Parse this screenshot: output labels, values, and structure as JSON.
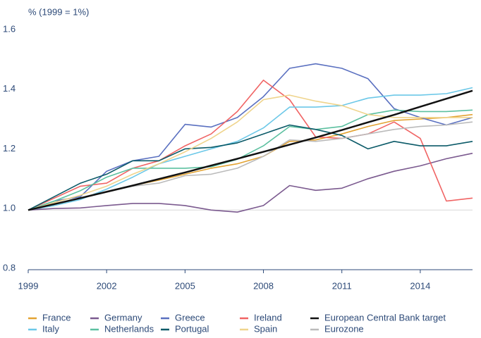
{
  "chart_data": {
    "type": "line",
    "y_label": "% (1999 = 1%)",
    "x": [
      1999,
      2000,
      2001,
      2002,
      2003,
      2004,
      2005,
      2006,
      2007,
      2008,
      2009,
      2010,
      2011,
      2012,
      2013,
      2014,
      2015,
      2016
    ],
    "xlim": [
      1999,
      2016
    ],
    "xticks": [
      1999,
      2002,
      2005,
      2008,
      2011,
      2014
    ],
    "ylim": [
      0.8,
      1.6
    ],
    "yticks": [
      0.8,
      {
        "value": 1,
        "label": "1.0"
      },
      1.2,
      1.4,
      1.6
    ],
    "series": [
      {
        "name": "France",
        "color": "#e3a332",
        "values": [
          1.0,
          1.018,
          1.04,
          1.06,
          1.082,
          1.1,
          1.12,
          1.14,
          1.155,
          1.18,
          1.23,
          1.235,
          1.255,
          1.28,
          1.3,
          1.305,
          1.31,
          1.32
        ]
      },
      {
        "name": "Germany",
        "color": "#7b5a8f",
        "values": [
          1.0,
          1.005,
          1.007,
          1.015,
          1.022,
          1.022,
          1.015,
          1.0,
          0.993,
          1.015,
          1.082,
          1.066,
          1.073,
          1.105,
          1.13,
          1.148,
          1.172,
          1.19
        ]
      },
      {
        "name": "Greece",
        "color": "#5a70c0",
        "values": [
          1.0,
          1.03,
          1.045,
          1.13,
          1.165,
          1.18,
          1.287,
          1.278,
          1.31,
          1.38,
          1.475,
          1.49,
          1.475,
          1.44,
          1.34,
          1.31,
          1.285,
          1.31
        ]
      },
      {
        "name": "Ireland",
        "color": "#f06464",
        "values": [
          1.0,
          1.04,
          1.08,
          1.09,
          1.14,
          1.165,
          1.215,
          1.255,
          1.33,
          1.435,
          1.37,
          1.245,
          1.24,
          1.255,
          1.295,
          1.24,
          1.03,
          1.04
        ]
      },
      {
        "name": "European Central Bank target",
        "color": "#111111",
        "values": [
          1.0,
          1.02,
          1.04,
          1.061,
          1.082,
          1.104,
          1.126,
          1.149,
          1.172,
          1.195,
          1.219,
          1.243,
          1.268,
          1.294,
          1.319,
          1.346,
          1.373,
          1.4
        ]
      },
      {
        "name": "Italy",
        "color": "#6cc8e8",
        "values": [
          1.0,
          1.015,
          1.035,
          1.07,
          1.11,
          1.155,
          1.18,
          1.205,
          1.23,
          1.275,
          1.345,
          1.345,
          1.35,
          1.375,
          1.385,
          1.385,
          1.39,
          1.41
        ]
      },
      {
        "name": "Netherlands",
        "color": "#5cc0a0",
        "values": [
          1.0,
          1.03,
          1.065,
          1.11,
          1.14,
          1.14,
          1.14,
          1.145,
          1.17,
          1.215,
          1.28,
          1.27,
          1.28,
          1.32,
          1.335,
          1.33,
          1.33,
          1.335
        ]
      },
      {
        "name": "Portugal",
        "color": "#0b5a68",
        "values": [
          1.0,
          1.045,
          1.09,
          1.12,
          1.165,
          1.165,
          1.205,
          1.21,
          1.225,
          1.255,
          1.285,
          1.27,
          1.25,
          1.205,
          1.23,
          1.215,
          1.215,
          1.23
        ]
      },
      {
        "name": "Spain",
        "color": "#efd48c",
        "values": [
          1.0,
          1.025,
          1.05,
          1.08,
          1.12,
          1.155,
          1.195,
          1.24,
          1.295,
          1.37,
          1.385,
          1.365,
          1.35,
          1.32,
          1.31,
          1.31,
          1.31,
          1.31
        ]
      },
      {
        "name": "Eurozone",
        "color": "#bbbbbb",
        "values": [
          1.0,
          1.02,
          1.04,
          1.06,
          1.08,
          1.09,
          1.115,
          1.12,
          1.14,
          1.18,
          1.235,
          1.23,
          1.24,
          1.255,
          1.27,
          1.28,
          1.285,
          1.295
        ]
      }
    ]
  }
}
